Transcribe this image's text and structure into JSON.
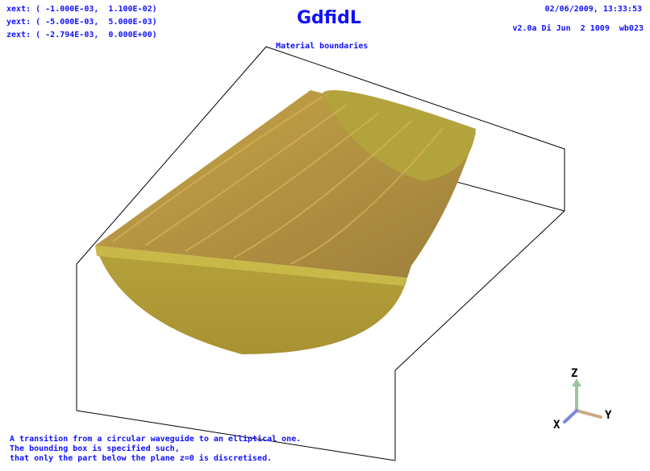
{
  "header": {
    "extents": [
      "xext: ( -1.000E-03,  1.100E-02)",
      "yext: ( -5.000E-03,  5.000E-03)",
      "zext: ( -2.794E-03,  0.000E+00)"
    ],
    "title": "GdfidL",
    "subtitle": "Material boundaries",
    "timestamp": "02/06/2009, 13:33:53",
    "version": "v2.0a Di Jun  2 1009  wb023"
  },
  "caption": [
    "A transition from a circular waveguide to an elliptical one.",
    "The bounding box is specified such,",
    "that only the part below the plane z=0 is discretised."
  ],
  "axes": {
    "x": "X",
    "y": "Y",
    "z": "Z"
  }
}
